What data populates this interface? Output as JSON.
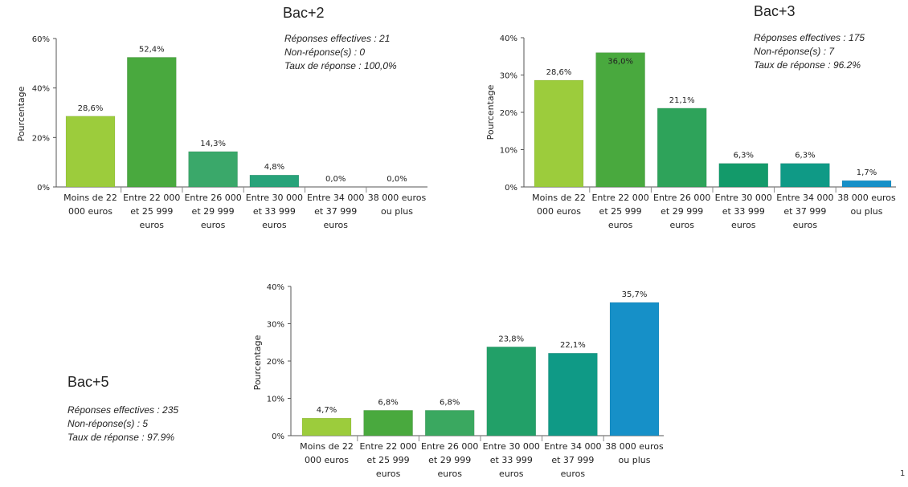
{
  "chart_data": [
    {
      "type": "bar",
      "title": "Bac+2",
      "ylabel": "Pourcentage",
      "ylim": [
        0,
        60
      ],
      "yticks": [
        "0%",
        "20%",
        "40%",
        "60%"
      ],
      "categories": [
        [
          "Moins de 22",
          "000 euros"
        ],
        [
          "Entre 22 000",
          "et 25 999",
          "euros"
        ],
        [
          "Entre 26 000",
          "et 29 999",
          "euros"
        ],
        [
          "Entre 30 000",
          "et 33 999",
          "euros"
        ],
        [
          "Entre 34 000",
          "et 37 999",
          "euros"
        ],
        [
          "38 000 euros",
          "ou plus"
        ]
      ],
      "values": [
        28.6,
        52.4,
        14.3,
        4.8,
        0.0,
        0.0
      ],
      "value_labels": [
        "28,6%",
        "52,4%",
        "14,3%",
        "4,8%",
        "0,0%",
        "0,0%"
      ],
      "bar_colors": [
        "#9ccc3c",
        "#49a93e",
        "#3aa86a",
        "#28a37a",
        "#13a08e",
        "#1690c8"
      ],
      "stats": [
        "Réponses effectives : 21",
        "Non-réponse(s) : 0",
        "Taux de réponse : 100,0%"
      ]
    },
    {
      "type": "bar",
      "title": "Bac+3",
      "ylabel": "Pourcentage",
      "ylim": [
        0,
        40
      ],
      "yticks": [
        "0%",
        "10%",
        "20%",
        "30%",
        "40%"
      ],
      "categories": [
        [
          "Moins de 22",
          "000 euros"
        ],
        [
          "Entre 22 000",
          "et 25 999",
          "euros"
        ],
        [
          "Entre 26 000",
          "et 29 999",
          "euros"
        ],
        [
          "Entre 30 000",
          "et 33 999",
          "euros"
        ],
        [
          "Entre 34 000",
          "et 37 999",
          "euros"
        ],
        [
          "38 000 euros",
          "ou plus"
        ]
      ],
      "values": [
        28.6,
        36.0,
        21.1,
        6.3,
        6.3,
        1.7
      ],
      "value_labels": [
        "28,6%",
        "36,0%",
        "21,1%",
        "6,3%",
        "6,3%",
        "1,7%"
      ],
      "bar_colors": [
        "#9ccc3c",
        "#49a93e",
        "#2ea35a",
        "#139a6a",
        "#0f9a86",
        "#1690c8"
      ],
      "stats": [
        "Réponses effectives : 175",
        "Non-réponse(s) : 7",
        "Taux de réponse : 96.2%"
      ]
    },
    {
      "type": "bar",
      "title": "Bac+5",
      "ylabel": "Pourcentage",
      "ylim": [
        0,
        40
      ],
      "yticks": [
        "0%",
        "10%",
        "20%",
        "30%",
        "40%"
      ],
      "categories": [
        [
          "Moins de 22",
          "000 euros"
        ],
        [
          "Entre 22 000",
          "et 25 999",
          "euros"
        ],
        [
          "Entre 26 000",
          "et 29 999",
          "euros"
        ],
        [
          "Entre 30 000",
          "et 33 999",
          "euros"
        ],
        [
          "Entre 34 000",
          "et 37 999",
          "euros"
        ],
        [
          "38 000 euros",
          "ou plus"
        ]
      ],
      "values": [
        4.7,
        6.8,
        6.8,
        23.8,
        22.1,
        35.7
      ],
      "value_labels": [
        "4,7%",
        "6,8%",
        "6,8%",
        "23,8%",
        "22,1%",
        "35,7%"
      ],
      "bar_colors": [
        "#9ccc3c",
        "#49a93e",
        "#3aa860",
        "#22a068",
        "#0f9a86",
        "#1690c8"
      ],
      "stats": [
        "Réponses effectives : 235",
        "Non-réponse(s) : 5",
        "Taux de réponse : 97.9%"
      ]
    }
  ],
  "page_number": "1"
}
